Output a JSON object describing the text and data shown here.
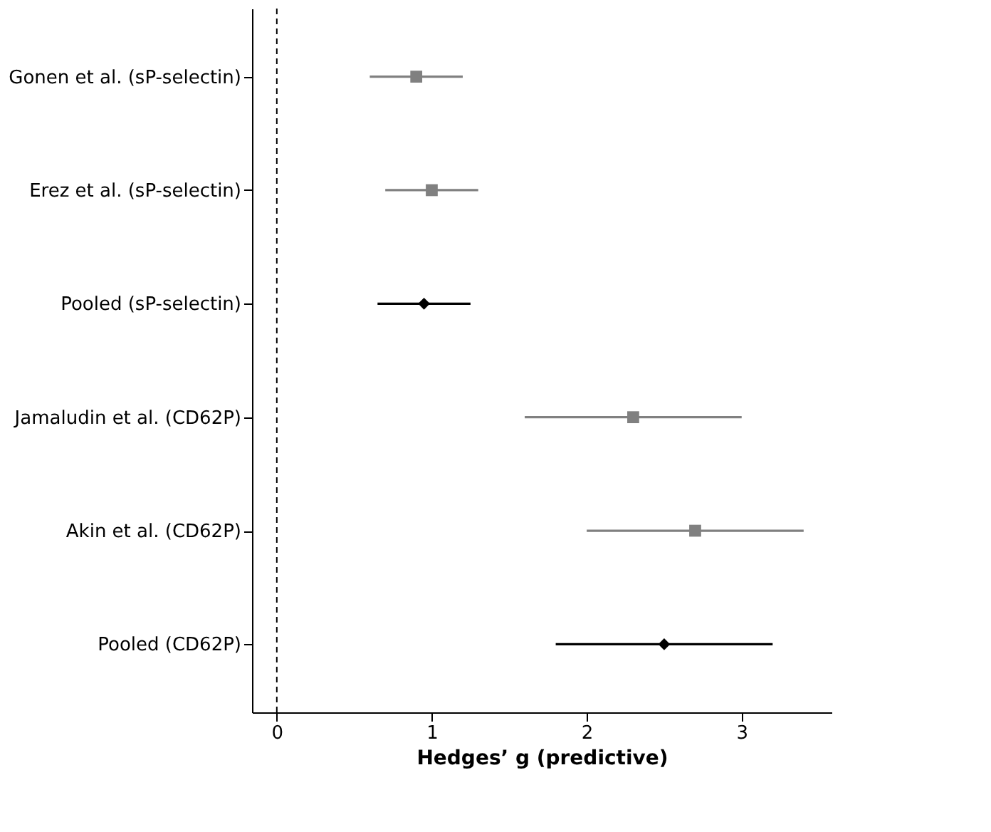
{
  "chart_data": {
    "type": "scatter",
    "orientation": "horizontal",
    "xlabel": "Hedges’ g (predictive)",
    "categories": [
      "Gonen et al. (sP-selectin)",
      "Erez et al. (sP-selectin)",
      "Pooled (sP-selectin)",
      "Jamaludin et al. (CD62P)",
      "Akin et al. (CD62P)",
      "Pooled (CD62P)"
    ],
    "series": [
      {
        "color": "#808080",
        "marker": "square",
        "values": [
          0.9,
          1.0,
          null,
          2.3,
          2.7,
          null
        ],
        "errors": [
          [
            0.6,
            1.2
          ],
          [
            0.7,
            1.3
          ],
          null,
          [
            1.6,
            3.0
          ],
          [
            2.0,
            3.4
          ],
          null
        ]
      },
      {
        "color": "#000000",
        "marker": "diamond",
        "values": [
          null,
          null,
          0.95,
          null,
          null,
          2.5
        ],
        "errors": [
          null,
          null,
          [
            0.65,
            1.25
          ],
          null,
          null,
          [
            1.8,
            3.2
          ]
        ]
      }
    ],
    "xlim": [
      -0.16,
      3.58
    ],
    "xticks": [
      0,
      1,
      2,
      3
    ],
    "grid": false,
    "legend": false,
    "ref_lines": [
      {
        "axis": "x",
        "value": 0,
        "line_style": "dashed",
        "color": "#000000"
      }
    ]
  }
}
